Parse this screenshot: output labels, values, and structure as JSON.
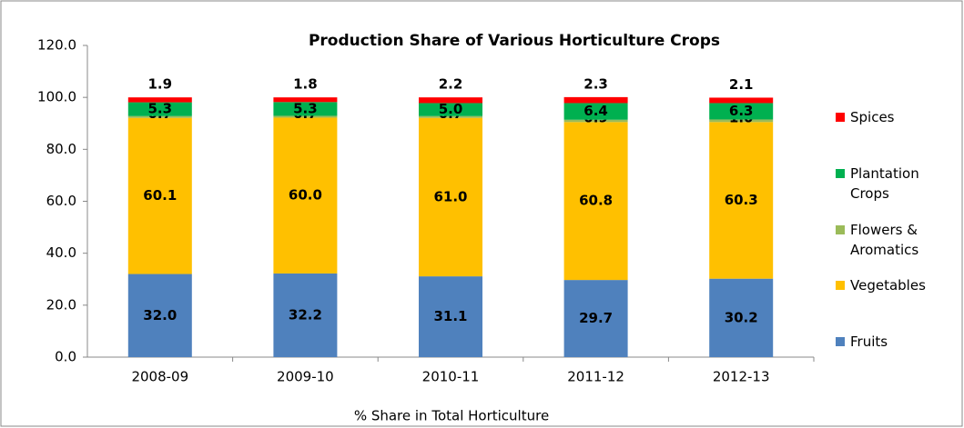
{
  "chart_data": {
    "type": "stacked_bar",
    "title": "Production Share of Various Horticulture Crops",
    "x_label": "% Share in Total Horticulture",
    "categories": [
      "2008-09",
      "2009-10",
      "2010-11",
      "2011-12",
      "2012-13"
    ],
    "series": [
      {
        "name": "Fruits",
        "color": "#4f81bd",
        "values": [
          32.0,
          32.2,
          31.1,
          29.7,
          30.2
        ],
        "value_labels": [
          "32.0",
          "32.2",
          "31.1",
          "29.7",
          "30.2"
        ]
      },
      {
        "name": "Vegetables",
        "color": "#ffc000",
        "values": [
          60.1,
          60.0,
          61.0,
          60.8,
          60.3
        ],
        "value_labels": [
          "60.1",
          "60.0",
          "61.0",
          "60.8",
          "60.3"
        ]
      },
      {
        "name": "Flowers & Aromatics",
        "color": "#9bbb59",
        "values": [
          0.7,
          0.7,
          0.7,
          0.9,
          1.0
        ],
        "value_labels": [
          "0.7",
          "0.7",
          "0.7",
          "0.9",
          "1.0"
        ]
      },
      {
        "name": "Plantation Crops",
        "color": "#00b050",
        "values": [
          5.3,
          5.3,
          5.0,
          6.4,
          6.3
        ],
        "value_labels": [
          "5.3",
          "5.3",
          "5.0",
          "6.4",
          "6.3"
        ]
      },
      {
        "name": "Spices",
        "color": "#ff0000",
        "values": [
          1.9,
          1.8,
          2.2,
          2.3,
          2.1
        ],
        "value_labels": [
          "1.9",
          "1.8",
          "2.2",
          "2.3",
          "2.1"
        ]
      }
    ],
    "ylim": [
      0,
      120
    ],
    "yticks": [
      {
        "value": 0,
        "label": "0.0"
      },
      {
        "value": 20,
        "label": "20.0"
      },
      {
        "value": 40,
        "label": "40.0"
      },
      {
        "value": 60,
        "label": "60.0"
      },
      {
        "value": 80,
        "label": "80.0"
      },
      {
        "value": 100,
        "label": "100.0"
      },
      {
        "value": 120,
        "label": "120.0"
      }
    ],
    "legend": "right"
  }
}
